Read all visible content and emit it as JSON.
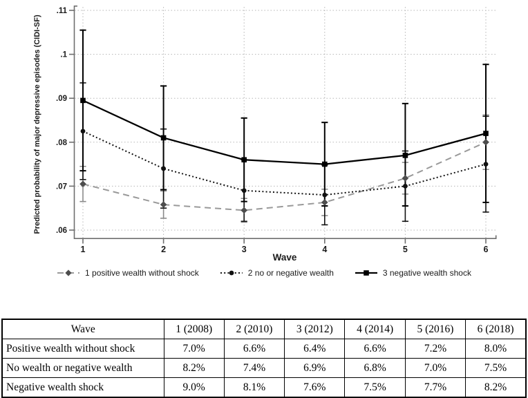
{
  "chart_data": {
    "type": "line",
    "title": "",
    "xlabel": "Wave",
    "ylabel": "Predicted probability of major depressive episodes (CIDI-SF)",
    "x": [
      1,
      2,
      3,
      4,
      5,
      6
    ],
    "x_tick_labels": [
      "1",
      "2",
      "3",
      "4",
      "5",
      "6"
    ],
    "ylim": [
      0.06,
      0.11
    ],
    "yticks": [
      0.06,
      0.07,
      0.08,
      0.09,
      0.1,
      0.11
    ],
    "y_tick_labels": [
      ".06",
      ".07",
      ".08",
      ".09",
      ".1",
      ".11"
    ],
    "grid": "dotted-both-axes",
    "legend_position": "bottom",
    "series": [
      {
        "name": "1 positive wealth without shock",
        "marker": "diamond",
        "line_style": "dashed",
        "line_color": "#999999",
        "marker_color": "#4d4d4d",
        "error_color": "#8a8a8a",
        "values": [
          0.0705,
          0.0658,
          0.0645,
          0.0663,
          0.0718,
          0.08
        ],
        "ci_low": [
          0.0665,
          0.0627,
          0.0618,
          0.0633,
          0.0682,
          0.0738
        ],
        "ci_high": [
          0.0745,
          0.0689,
          0.0672,
          0.0693,
          0.0754,
          0.0862
        ]
      },
      {
        "name": "2 no or negative wealth",
        "marker": "circle",
        "line_style": "dotted",
        "line_color": "#111111",
        "marker_color": "#111111",
        "error_color": "#111111",
        "values": [
          0.0825,
          0.074,
          0.069,
          0.068,
          0.07,
          0.075
        ],
        "ci_low": [
          0.0715,
          0.065,
          0.062,
          0.0612,
          0.062,
          0.0641
        ],
        "ci_high": [
          0.0935,
          0.083,
          0.076,
          0.0748,
          0.078,
          0.0859
        ]
      },
      {
        "name": "3 negative wealth shock",
        "marker": "square",
        "line_style": "solid",
        "line_color": "#000000",
        "marker_color": "#000000",
        "error_color": "#000000",
        "values": [
          0.0895,
          0.081,
          0.076,
          0.075,
          0.077,
          0.082
        ],
        "ci_low": [
          0.0735,
          0.0692,
          0.0665,
          0.0655,
          0.0655,
          0.0663
        ],
        "ci_high": [
          0.1055,
          0.0928,
          0.0855,
          0.0845,
          0.0888,
          0.0977
        ]
      }
    ]
  },
  "table": {
    "headers": [
      "Wave",
      "1 (2008)",
      "2 (2010)",
      "3 (2012)",
      "4 (2014)",
      "5 (2016)",
      "6 (2018)"
    ],
    "rows": [
      {
        "label": "Positive wealth without shock",
        "values": [
          "7.0%",
          "6.6%",
          "6.4%",
          "6.6%",
          "7.2%",
          "8.0%"
        ]
      },
      {
        "label": "No wealth or negative wealth",
        "values": [
          "8.2%",
          "7.4%",
          "6.9%",
          "6.8%",
          "7.0%",
          "7.5%"
        ]
      },
      {
        "label": "Negative wealth shock",
        "values": [
          "9.0%",
          "8.1%",
          "7.6%",
          "7.5%",
          "7.7%",
          "8.2%"
        ]
      }
    ]
  },
  "colors": {
    "axis": "#6e6e6e",
    "grid": "#b5b5b5",
    "tick_text": "#1a1a1a"
  }
}
